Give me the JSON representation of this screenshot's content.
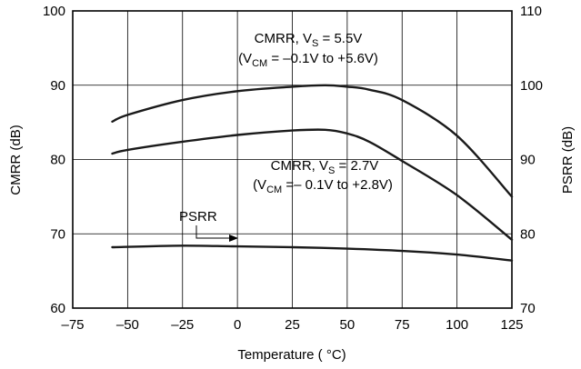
{
  "chart_data": {
    "type": "line",
    "xlabel": "Temperature (  °C)",
    "ylabel": "CMRR (dB)",
    "y2label": "PSRR (dB)",
    "xlim": [
      -75,
      125
    ],
    "ylim": [
      60,
      100
    ],
    "y2lim": [
      70,
      110
    ],
    "xticks": [
      "–75",
      "–50",
      "–25",
      "0",
      "25",
      "50",
      "75",
      "100",
      "125"
    ],
    "yticks": [
      "60",
      "70",
      "80",
      "90",
      "100"
    ],
    "y2ticks": [
      "70",
      "80",
      "90",
      "100",
      "110"
    ],
    "grid": true,
    "series": [
      {
        "axis": "left",
        "x": [
          -57,
          -50,
          -25,
          0,
          25,
          40,
          50,
          60,
          75,
          100,
          125
        ],
        "y": [
          85.1,
          86.0,
          88.0,
          89.2,
          89.8,
          90.0,
          89.8,
          89.4,
          88.0,
          83.2,
          75.0
        ]
      },
      {
        "axis": "left",
        "x": [
          -57,
          -50,
          -25,
          0,
          25,
          40,
          50,
          60,
          75,
          100,
          125
        ],
        "y": [
          80.8,
          81.3,
          82.4,
          83.3,
          83.9,
          84.0,
          83.5,
          82.4,
          79.8,
          75.2,
          69.2
        ]
      },
      {
        "axis": "left",
        "x": [
          -57,
          -25,
          0,
          25,
          50,
          75,
          100,
          125
        ],
        "y": [
          68.2,
          68.4,
          68.3,
          68.2,
          68.0,
          67.7,
          67.2,
          66.4
        ]
      }
    ],
    "annotations": {
      "cmrr55_line1_main": "CMRR, V",
      "cmrr55_line1_sub": "S",
      "cmrr55_line1_rest": " = 5.5V",
      "cmrr55_line2_open": "(V",
      "cmrr55_line2_sub": "CM",
      "cmrr55_line2_rest": " = –0.1V to +5.6V)",
      "cmrr27_line1_main": "CMRR, V",
      "cmrr27_line1_sub": "S",
      "cmrr27_line1_rest": " = 2.7V",
      "cmrr27_line2_open": "(V",
      "cmrr27_line2_sub": "CM",
      "cmrr27_line2_rest": " =– 0.1V to +2.8V)",
      "psrr_label": "PSRR"
    }
  }
}
